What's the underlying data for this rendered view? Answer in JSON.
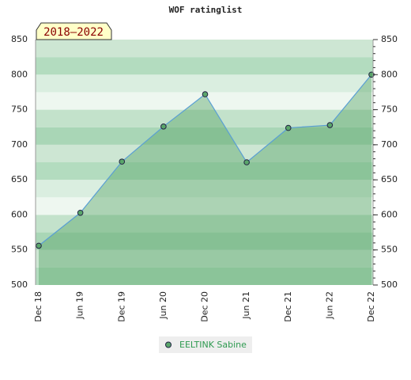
{
  "chart_data": {
    "type": "area",
    "title": "WOF ratinglist",
    "badge": "2018–2022",
    "categories": [
      "Dec 18",
      "Jun 19",
      "Dec 19",
      "Jun 20",
      "Dec 20",
      "Jun 21",
      "Dec 21",
      "Jun 22",
      "Dec 22"
    ],
    "series": [
      {
        "name": "EELTINK Sabine",
        "color": "#5aa66a",
        "values": [
          556,
          603,
          676,
          726,
          772,
          675,
          724,
          728,
          800
        ]
      }
    ],
    "ylim": [
      500,
      850
    ],
    "yticks": [
      500,
      550,
      600,
      650,
      700,
      750,
      800,
      850
    ],
    "grid": true
  }
}
